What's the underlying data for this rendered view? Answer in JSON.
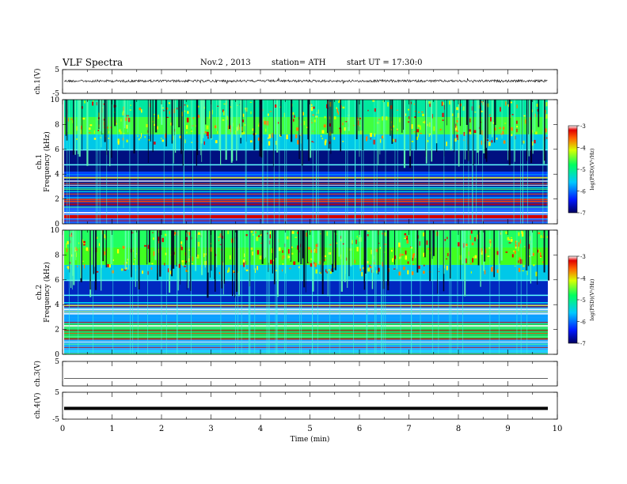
{
  "header": {
    "title": "VLF  Spectra",
    "date": "Nov.2  , 2013",
    "station": "station= ATH",
    "start_ut": "start  UT  =   17:30:0"
  },
  "chart_data": [
    {
      "type": "line",
      "panel": "ch1-waveform",
      "ylabel": "ch.1(V)",
      "ylim": [
        -5,
        5
      ],
      "y_ticks": [
        "5",
        "-5"
      ],
      "baseline_v": 0.2,
      "noise_amplitude_v": 0.5,
      "x_range_min": [
        0,
        9.8
      ]
    },
    {
      "type": "heatmap",
      "panel": "ch1-spectrogram",
      "ylabel": "ch.1\nFrequency  (kHz)",
      "ylim": [
        0,
        10
      ],
      "y_ticks": [
        "0",
        "2",
        "4",
        "6",
        "8",
        "10"
      ],
      "colorbar": {
        "label": "log(PSD)(V²/Hz)",
        "range": [
          -7,
          -3
        ],
        "ticks": [
          "-3",
          "-4",
          "-5",
          "-6",
          "-7"
        ]
      }
    },
    {
      "type": "heatmap",
      "panel": "ch2-spectrogram",
      "ylabel": "ch.2\nFrequency  (kHz)",
      "ylim": [
        0,
        10
      ],
      "y_ticks": [
        "0",
        "2",
        "4",
        "6",
        "8",
        "10"
      ],
      "colorbar": {
        "label": "log(PSD)(V²/Hz)",
        "range": [
          -7,
          -3
        ],
        "ticks": [
          "-3",
          "-4",
          "-5",
          "-6",
          "-7"
        ]
      }
    },
    {
      "type": "line",
      "panel": "ch3-waveform",
      "ylabel": "ch.3(V)",
      "ylim": [
        -5,
        5
      ],
      "y_ticks": [
        "5"
      ],
      "baseline_v": -2.0
    },
    {
      "type": "line",
      "panel": "ch4-waveform",
      "ylabel": "ch.4(V)",
      "ylim": [
        -5,
        5
      ],
      "y_ticks": [
        "5",
        "-5"
      ],
      "baseline_v": -1.0
    }
  ],
  "x_axis": {
    "label": "Time  (min)",
    "range": [
      0,
      10
    ],
    "ticks": [
      "0",
      "1",
      "2",
      "3",
      "4",
      "5",
      "6",
      "7",
      "8",
      "9",
      "10"
    ]
  }
}
